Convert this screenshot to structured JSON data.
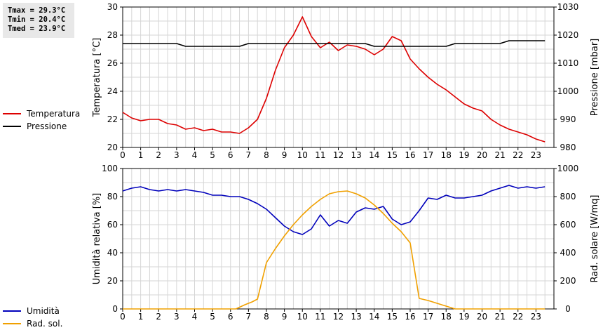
{
  "stats": {
    "tmax": "Tmax = 29.3°C",
    "tmin": "Tmin = 20.4°C",
    "tmed": "Tmed = 23.9°C"
  },
  "chart_data": [
    {
      "type": "line",
      "xlim": [
        0,
        24
      ],
      "x_ticks": [
        "0",
        "1",
        "2",
        "3",
        "4",
        "5",
        "6",
        "7",
        "8",
        "9",
        "10",
        "11",
        "12",
        "13",
        "14",
        "15",
        "16",
        "17",
        "18",
        "19",
        "20",
        "21",
        "22",
        "23"
      ],
      "ylabel": "Temperatura [°C]",
      "ylim": [
        20,
        30
      ],
      "y_ticks": [
        "20",
        "22",
        "24",
        "26",
        "28",
        "30"
      ],
      "y2label": "Pressione [mbar]",
      "y2lim": [
        980,
        1030
      ],
      "y2_ticks": [
        "980",
        "990",
        "1000",
        "1010",
        "1020",
        "1030"
      ],
      "grid": true,
      "series": [
        {
          "name": "Temperatura",
          "color": "#dd0000",
          "axis": "left",
          "x": [
            0,
            0.5,
            1,
            1.5,
            2,
            2.5,
            3,
            3.5,
            4,
            4.5,
            5,
            5.5,
            6,
            6.5,
            7,
            7.5,
            8,
            8.5,
            9,
            9.5,
            10,
            10.5,
            11,
            11.5,
            12,
            12.5,
            13,
            13.5,
            14,
            14.5,
            15,
            15.5,
            16,
            16.5,
            17,
            17.5,
            18,
            18.5,
            19,
            19.5,
            20,
            20.5,
            21,
            21.5,
            22,
            22.5,
            23,
            23.5
          ],
          "y": [
            22.5,
            22.1,
            21.9,
            22.0,
            22.0,
            21.7,
            21.6,
            21.3,
            21.4,
            21.2,
            21.3,
            21.1,
            21.1,
            21.0,
            21.4,
            22.0,
            23.5,
            25.5,
            27.1,
            28.0,
            29.3,
            27.9,
            27.1,
            27.5,
            26.9,
            27.3,
            27.2,
            27.0,
            26.6,
            27.0,
            27.9,
            27.6,
            26.3,
            25.6,
            25.0,
            24.5,
            24.1,
            23.6,
            23.1,
            22.8,
            22.6,
            22.0,
            21.6,
            21.3,
            21.1,
            20.9,
            20.6,
            20.4
          ]
        },
        {
          "name": "Pressione",
          "color": "#000000",
          "axis": "right",
          "x": [
            0,
            3,
            3.5,
            6.5,
            7,
            13.5,
            14,
            18,
            18.5,
            21,
            21.5,
            23.5
          ],
          "y": [
            1017,
            1017,
            1016,
            1016,
            1017,
            1017,
            1016,
            1016,
            1017,
            1017,
            1018,
            1018
          ]
        }
      ]
    },
    {
      "type": "line",
      "xlim": [
        0,
        24
      ],
      "x_ticks": [
        "0",
        "1",
        "2",
        "3",
        "4",
        "5",
        "6",
        "7",
        "8",
        "9",
        "10",
        "11",
        "12",
        "13",
        "14",
        "15",
        "16",
        "17",
        "18",
        "19",
        "20",
        "21",
        "22",
        "23"
      ],
      "ylabel": "Umidità relativa [%]",
      "ylim": [
        0,
        100
      ],
      "y_ticks": [
        "0",
        "20",
        "40",
        "60",
        "80",
        "100"
      ],
      "y2label": "Rad. solare [W/mq]",
      "y2lim": [
        0,
        1000
      ],
      "y2_ticks": [
        "0",
        "200",
        "400",
        "600",
        "800",
        "1000"
      ],
      "grid": true,
      "series": [
        {
          "name": "Umidità",
          "color": "#0000bb",
          "axis": "left",
          "x": [
            0,
            0.5,
            1,
            1.5,
            2,
            2.5,
            3,
            3.5,
            4,
            4.5,
            5,
            5.5,
            6,
            6.5,
            7,
            7.5,
            8,
            8.5,
            9,
            9.5,
            10,
            10.5,
            11,
            11.5,
            12,
            12.5,
            13,
            13.5,
            14,
            14.5,
            15,
            15.5,
            16,
            16.5,
            17,
            17.5,
            18,
            18.5,
            19,
            19.5,
            20,
            20.5,
            21,
            21.5,
            22,
            22.5,
            23,
            23.5
          ],
          "y": [
            84,
            86,
            87,
            85,
            84,
            85,
            84,
            85,
            84,
            83,
            81,
            81,
            80,
            80,
            78,
            75,
            71,
            65,
            59,
            55,
            53,
            57,
            67,
            59,
            63,
            61,
            69,
            72,
            71,
            73,
            64,
            60,
            62,
            70,
            79,
            78,
            81,
            79,
            79,
            80,
            81,
            84,
            86,
            88,
            86,
            87,
            86,
            87
          ]
        },
        {
          "name": "Rad. sol.",
          "color": "#f0a000",
          "axis": "right",
          "x": [
            0,
            6.3,
            6.8,
            7.2,
            7.5,
            8,
            8.5,
            9,
            9.5,
            10,
            10.5,
            11,
            11.5,
            12,
            12.5,
            13,
            13.5,
            14,
            14.5,
            15,
            15.5,
            16,
            16.5,
            17,
            17.5,
            18,
            18.5,
            23.5
          ],
          "y": [
            0,
            0,
            30,
            50,
            70,
            330,
            430,
            520,
            600,
            670,
            730,
            780,
            820,
            835,
            840,
            820,
            790,
            740,
            680,
            610,
            550,
            470,
            75,
            60,
            40,
            20,
            0,
            0
          ]
        }
      ]
    }
  ]
}
